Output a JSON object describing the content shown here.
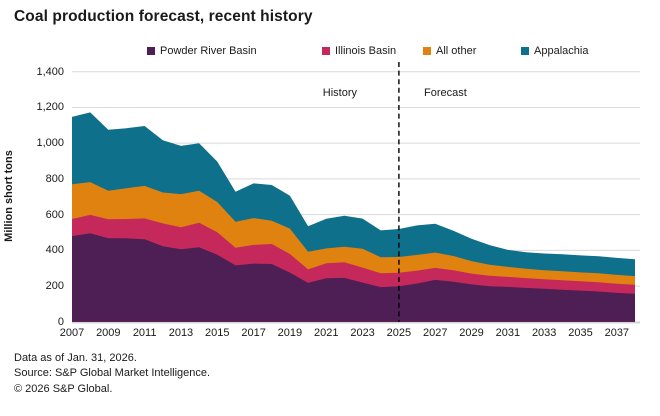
{
  "title": "Coal production forecast, recent history",
  "chart_data": {
    "type": "area",
    "stacked": true,
    "title": "Coal production forecast, recent history",
    "ylabel": "Million short tons",
    "ylim": [
      0,
      1400
    ],
    "ytick_step": 200,
    "ytick_labels": [
      "0",
      "200",
      "400",
      "600",
      "800",
      "1,000",
      "1,200",
      "1,400"
    ],
    "x": [
      2007,
      2008,
      2009,
      2010,
      2011,
      2012,
      2013,
      2014,
      2015,
      2016,
      2017,
      2018,
      2019,
      2020,
      2021,
      2022,
      2023,
      2024,
      2025,
      2026,
      2027,
      2028,
      2029,
      2030,
      2031,
      2032,
      2033,
      2034,
      2035,
      2036,
      2037,
      2038
    ],
    "xtick_labels": [
      "2007",
      "2009",
      "2011",
      "2013",
      "2015",
      "2017",
      "2019",
      "2021",
      "2023",
      "2025",
      "2027",
      "2029",
      "2031",
      "2033",
      "2035",
      "2037"
    ],
    "series": [
      {
        "name": "Powder River Basin",
        "color": "#4E1F54",
        "values": [
          480,
          496,
          468,
          468,
          462,
          423,
          407,
          418,
          376,
          316,
          326,
          324,
          276,
          218,
          244,
          246,
          220,
          195,
          200,
          215,
          235,
          225,
          210,
          200,
          196,
          190,
          185,
          180,
          175,
          170,
          162,
          158
        ]
      },
      {
        "name": "Illinois Basin",
        "color": "#C5295C",
        "values": [
          96,
          103,
          106,
          108,
          117,
          128,
          123,
          137,
          126,
          99,
          105,
          112,
          104,
          76,
          84,
          88,
          84,
          77,
          75,
          72,
          67,
          64,
          60,
          58,
          56,
          55,
          54,
          53,
          52,
          52,
          51,
          50
        ]
      },
      {
        "name": "All other",
        "color": "#E0820F",
        "values": [
          194,
          183,
          160,
          172,
          182,
          173,
          185,
          179,
          169,
          145,
          150,
          130,
          142,
          98,
          83,
          87,
          105,
          90,
          88,
          88,
          86,
          80,
          70,
          62,
          56,
          52,
          50,
          50,
          50,
          50,
          50,
          48
        ]
      },
      {
        "name": "Appalachia",
        "color": "#0E708A",
        "values": [
          377,
          390,
          341,
          336,
          335,
          292,
          270,
          266,
          226,
          168,
          194,
          200,
          184,
          143,
          166,
          173,
          169,
          150,
          157,
          165,
          161,
          141,
          125,
          110,
          95,
          93,
          94,
          95,
          95,
          95,
          95,
          95
        ]
      }
    ],
    "annotations": {
      "history": "History",
      "forecast": "Forecast",
      "divider_x": 2025
    },
    "grid": true,
    "grid_color": "#D9D9D9",
    "legend_position": "top"
  },
  "footer": {
    "line1": "Data as of Jan. 31, 2026.",
    "line2": "Source: S&P Global Market Intelligence.",
    "line3": "© 2026 S&P Global."
  }
}
